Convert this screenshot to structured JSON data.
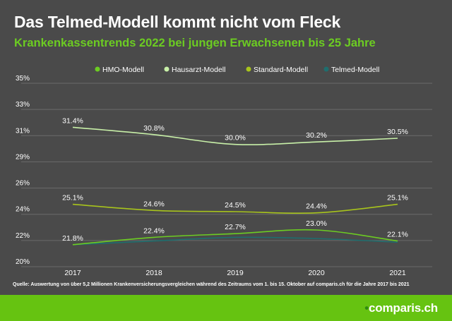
{
  "header": {
    "title": "Das Telmed-Modell kommt nicht vom Fleck",
    "subtitle": "Krankenkassentrends 2022 bei jungen Erwachsenen bis 25 Jahre"
  },
  "chart_data": {
    "type": "line",
    "categories": [
      "2017",
      "2018",
      "2019",
      "2020",
      "2021"
    ],
    "y_ticks": [
      "35%",
      "33%",
      "31%",
      "29%",
      "26%",
      "24%",
      "22%",
      "20%"
    ],
    "ylim": [
      20,
      35
    ],
    "legend_position": "top-center",
    "grid": true,
    "series": [
      {
        "name": "HMO-Modell",
        "color": "#6ccc22",
        "values": [
          21.8,
          22.4,
          22.7,
          23.0,
          22.1
        ],
        "labels": [
          "21.8%",
          "22.4%",
          "22.7%",
          "23.0%",
          "22.1%"
        ]
      },
      {
        "name": "Hausarzt-Modell",
        "color": "#c8f0a8",
        "values": [
          31.4,
          30.8,
          30.0,
          30.2,
          30.5
        ],
        "labels": [
          "31.4%",
          "30.8%",
          "30.0%",
          "30.2%",
          "30.5%"
        ]
      },
      {
        "name": "Standard-Modell",
        "color": "#a8c41c",
        "values": [
          25.1,
          24.6,
          24.5,
          24.4,
          25.1
        ],
        "labels": [
          "25.1%",
          "24.6%",
          "24.5%",
          "24.4%",
          "25.1%"
        ]
      },
      {
        "name": "Telmed-Modell",
        "color": "#1e6e6e",
        "values": [
          21.8,
          22.1,
          22.4,
          22.3,
          22.0
        ],
        "labels": []
      }
    ]
  },
  "source": "Quelle: Auswertung von über 5,2 Millionen Krankenversicherungsvergleichen während des Zeitraums vom 1. bis 15. Oktober auf comparis.ch für die Jahre 2017 bis 2021",
  "brand": {
    "name": "comparis",
    "suffix": ".ch",
    "accent_color": "#2f8a12"
  }
}
